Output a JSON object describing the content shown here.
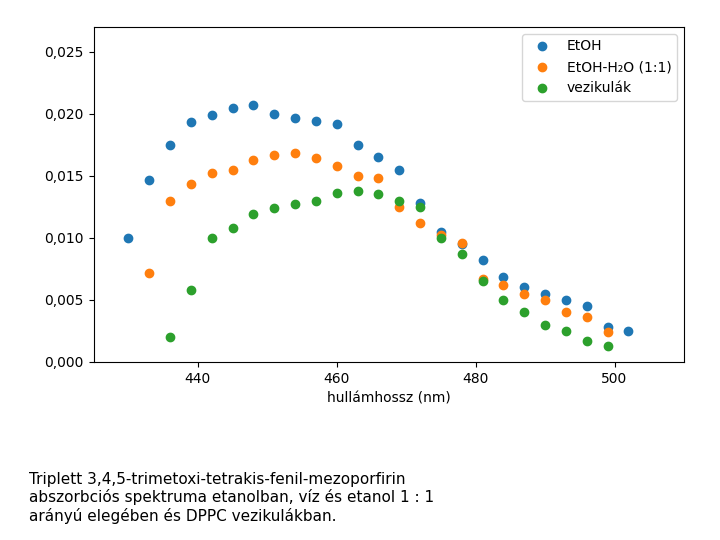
{
  "chart_data": {
    "type": "scatter",
    "xlabel": "hullámhossz (nm)",
    "caption": [
      "Triplett 3,4,5-trimetoxi-tetrakis-fenil-mezoporfirin",
      "abszorbciós spektruma etanolban, víz és etanol 1 : 1",
      "arányú elegében és DPPC vezikulákban."
    ],
    "series": [
      {
        "name": "EtOH",
        "x": [
          430,
          433,
          436,
          439,
          442,
          445,
          448,
          451,
          454,
          457,
          460,
          463,
          466,
          469,
          472,
          475,
          478,
          481,
          484,
          487,
          490,
          493,
          496,
          499,
          502
        ],
        "values": [
          0.01,
          0.0147,
          0.0175,
          0.0193,
          0.0199,
          0.0205,
          0.0207,
          0.02,
          0.0197,
          0.0194,
          0.0192,
          0.0175,
          0.0165,
          0.0155,
          0.0128,
          0.0105,
          0.0095,
          0.0082,
          0.0068,
          0.006,
          0.0055,
          0.005,
          0.0045,
          0.0028,
          0.0025
        ]
      },
      {
        "name": "EtOH-H₂O (1:1)",
        "x": [
          433,
          436,
          439,
          442,
          445,
          448,
          451,
          454,
          457,
          460,
          463,
          466,
          469,
          472,
          475,
          478,
          481,
          484,
          487,
          490,
          493,
          496,
          499
        ],
        "values": [
          0.0072,
          0.013,
          0.0143,
          0.0152,
          0.0155,
          0.0163,
          0.0167,
          0.0168,
          0.0164,
          0.0158,
          0.015,
          0.0148,
          0.0125,
          0.0112,
          0.0102,
          0.0096,
          0.0067,
          0.0062,
          0.0055,
          0.005,
          0.004,
          0.0036,
          0.0024
        ]
      },
      {
        "name": "vezikulák",
        "x": [
          436,
          439,
          442,
          445,
          448,
          451,
          454,
          457,
          460,
          463,
          466,
          469,
          472,
          475,
          478,
          481,
          484,
          487,
          490,
          493,
          496,
          499
        ],
        "values": [
          0.002,
          0.0058,
          0.01,
          0.0108,
          0.0119,
          0.0124,
          0.0127,
          0.013,
          0.0136,
          0.0138,
          0.0135,
          0.013,
          0.0125,
          0.01,
          0.0087,
          0.0065,
          0.005,
          0.004,
          0.003,
          0.0025,
          0.0017,
          0.0013
        ]
      }
    ],
    "xlim": [
      425,
      510
    ],
    "xticks": [
      440,
      460,
      480,
      500
    ],
    "ylim": [
      0.0,
      0.027
    ],
    "yticks": [
      {
        "value": 0.0,
        "label": "0,000"
      },
      {
        "value": 0.005,
        "label": "0,005"
      },
      {
        "value": 0.01,
        "label": "0,010"
      },
      {
        "value": 0.015,
        "label": "0,015"
      },
      {
        "value": 0.02,
        "label": "0,020"
      },
      {
        "value": 0.025,
        "label": "0,025"
      }
    ],
    "legend": "upper right"
  }
}
